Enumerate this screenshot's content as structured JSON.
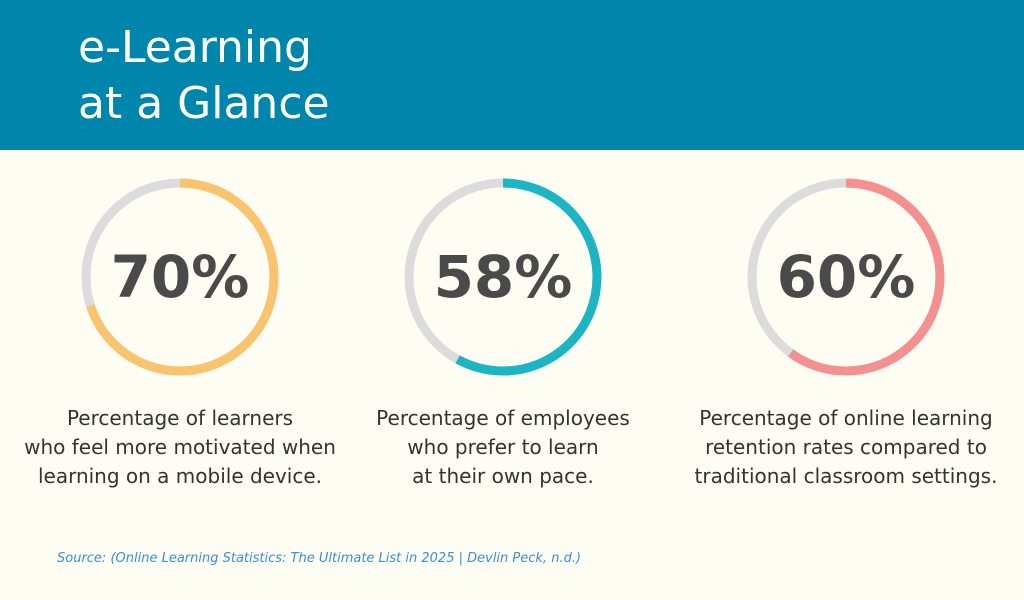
{
  "header": {
    "title_lines": [
      "e-Learning",
      "at a Glance"
    ]
  },
  "chart_data": [
    {
      "type": "donut",
      "values": [
        70
      ],
      "value_labels": [
        "70%"
      ],
      "ylim": [
        0,
        100
      ],
      "color": "#f9c46e",
      "caption": [
        "Percentage of learners",
        "who feel more motivated when",
        "learning on a mobile device."
      ]
    },
    {
      "type": "donut",
      "values": [
        58
      ],
      "value_labels": [
        "58%"
      ],
      "ylim": [
        0,
        100
      ],
      "color": "#1bb5c4",
      "caption": [
        "Percentage of employees",
        "who prefer to learn",
        "at their own pace."
      ]
    },
    {
      "type": "donut",
      "values": [
        60
      ],
      "value_labels": [
        "60%"
      ],
      "ylim": [
        0,
        100
      ],
      "color": "#f49090",
      "caption": [
        "Percentage of online learning",
        "retention rates compared to",
        "traditional classroom settings."
      ]
    }
  ],
  "source": "Source: (Online Learning Statistics: The Ultimate List in 2025 | Devlin Peck, n.d.)"
}
